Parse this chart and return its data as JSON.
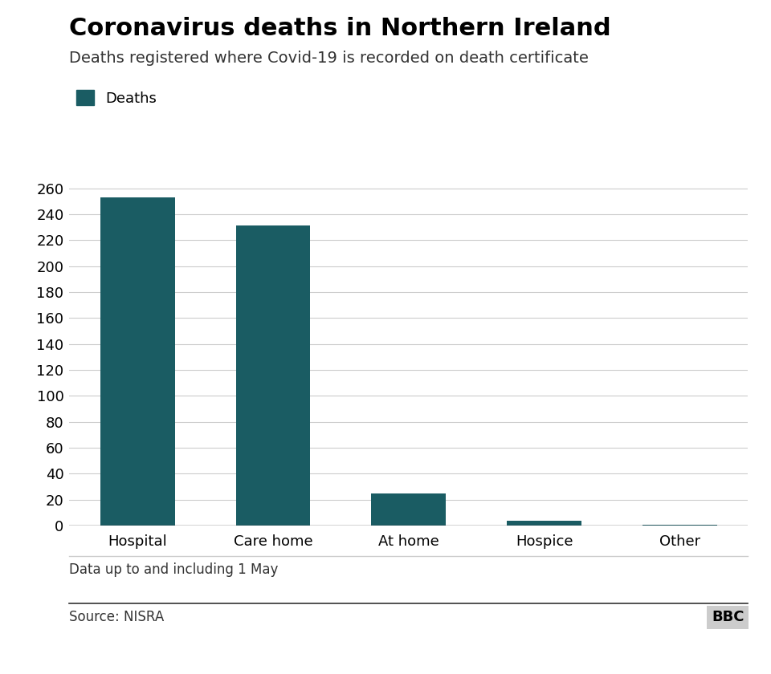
{
  "title": "Coronavirus deaths in Northern Ireland",
  "subtitle": "Deaths registered where Covid-19 is recorded on death certificate",
  "legend_label": "Deaths",
  "categories": [
    "Hospital",
    "Care home",
    "At home",
    "Hospice",
    "Other"
  ],
  "values": [
    253,
    231,
    25,
    4,
    1
  ],
  "bar_color": "#1a5c63",
  "ylim": [
    0,
    270
  ],
  "yticks": [
    0,
    20,
    40,
    60,
    80,
    100,
    120,
    140,
    160,
    180,
    200,
    220,
    240,
    260
  ],
  "footnote": "Data up to and including 1 May",
  "source": "Source: NISRA",
  "bbc_label": "BBC",
  "background_color": "#ffffff",
  "title_fontsize": 22,
  "subtitle_fontsize": 14,
  "tick_fontsize": 13,
  "xlabel_fontsize": 13,
  "legend_fontsize": 13,
  "footnote_fontsize": 12,
  "source_fontsize": 12,
  "grid_color": "#cccccc",
  "axis_line_color": "#333333"
}
